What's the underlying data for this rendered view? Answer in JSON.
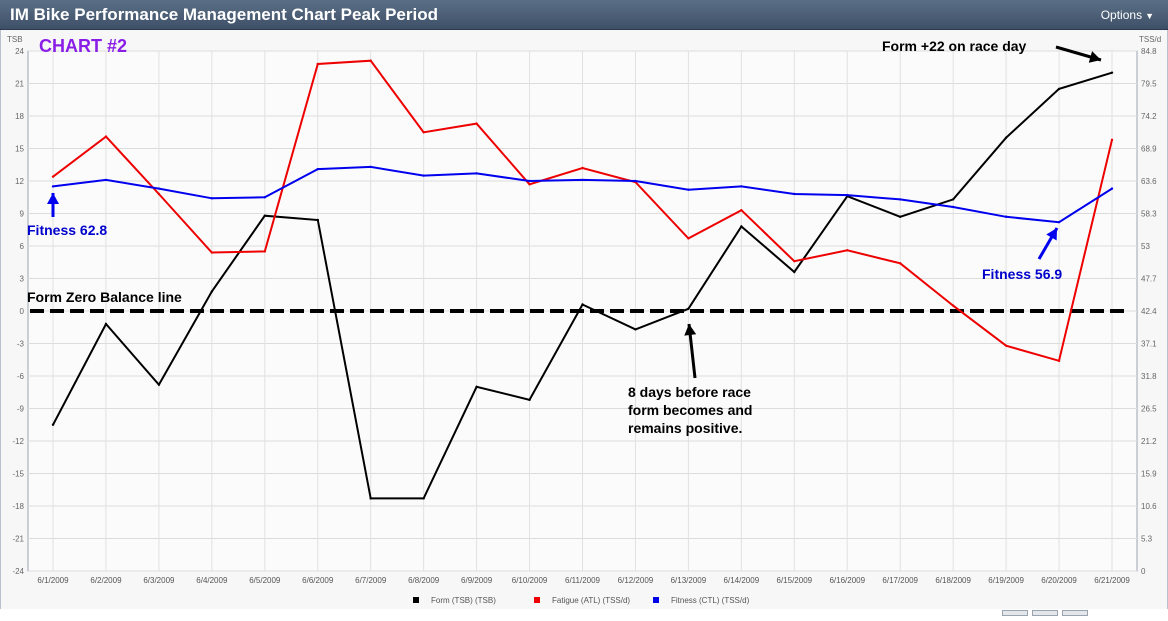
{
  "window": {
    "title": "IM Bike Performance Management Chart Peak Period",
    "options_label": "Options"
  },
  "chart_data": {
    "type": "line",
    "annotation_title": "CHART #2",
    "left_axis_label": "TSB",
    "right_axis_label": "TSS/d",
    "left_ylim": [
      -24,
      24
    ],
    "left_ticks": [
      "24",
      "21",
      "18",
      "15",
      "12",
      "9",
      "6",
      "3",
      "0",
      "-3",
      "-6",
      "-9",
      "-12",
      "-15",
      "-18",
      "-21",
      "-24"
    ],
    "right_ticks": [
      "84.8",
      "79.5",
      "74.2",
      "68.9",
      "63.6",
      "58.3",
      "53",
      "47.7",
      "42.4",
      "37.1",
      "31.8",
      "26.5",
      "21.2",
      "15.9",
      "10.6",
      "5.3",
      "0"
    ],
    "categories": [
      "6/1/2009",
      "6/2/2009",
      "6/3/2009",
      "6/4/2009",
      "6/5/2009",
      "6/6/2009",
      "6/7/2009",
      "6/8/2009",
      "6/9/2009",
      "6/10/2009",
      "6/11/2009",
      "6/12/2009",
      "6/13/2009",
      "6/14/2009",
      "6/15/2009",
      "6/16/2009",
      "6/17/2009",
      "6/18/2009",
      "6/19/2009",
      "6/20/2009",
      "6/21/2009"
    ],
    "series": [
      {
        "name": "Form (TSB) (TSB)",
        "color": "#000000",
        "values": [
          -10.5,
          -1.2,
          -6.8,
          1.8,
          8.8,
          8.4,
          -17.3,
          -17.3,
          -7.0,
          -8.2,
          0.6,
          -1.7,
          0.2,
          7.8,
          3.6,
          10.6,
          8.7,
          10.3,
          16.0,
          20.5,
          22.0
        ]
      },
      {
        "name": "Fatigue (ATL) (TSS/d)",
        "color": "#ee0000",
        "values": [
          12.4,
          16.1,
          10.8,
          5.4,
          5.5,
          22.8,
          23.1,
          16.5,
          17.3,
          11.7,
          13.2,
          11.9,
          6.7,
          9.3,
          4.6,
          5.6,
          4.4,
          0.5,
          -3.2,
          -4.6,
          15.8
        ]
      },
      {
        "name": "Fitness (CTL) (TSS/d)",
        "color": "#0000ee",
        "values": [
          11.5,
          12.1,
          11.3,
          10.4,
          10.5,
          13.1,
          13.3,
          12.5,
          12.7,
          12.0,
          12.1,
          12.0,
          11.2,
          11.5,
          10.8,
          10.7,
          10.3,
          9.6,
          8.7,
          8.2,
          11.3
        ]
      }
    ],
    "legend": [
      "Form (TSB) (TSB)",
      "Fatigue (ATL) (TSS/d)",
      "Fitness (CTL) (TSS/d)"
    ],
    "legend_colors": [
      "#000000",
      "#ee0000",
      "#0000ee"
    ],
    "zero_line_label": "Form Zero Balance line",
    "annotations": [
      {
        "text": "Form +22 on race day",
        "color": "#000000"
      },
      {
        "text": "Fitness 62.8",
        "color": "#0000cc"
      },
      {
        "text": "Fitness 56.9",
        "color": "#0000cc"
      },
      {
        "lines": [
          "8 days before race",
          "form becomes and",
          "remains positive."
        ],
        "color": "#000000"
      }
    ],
    "grid": true
  }
}
